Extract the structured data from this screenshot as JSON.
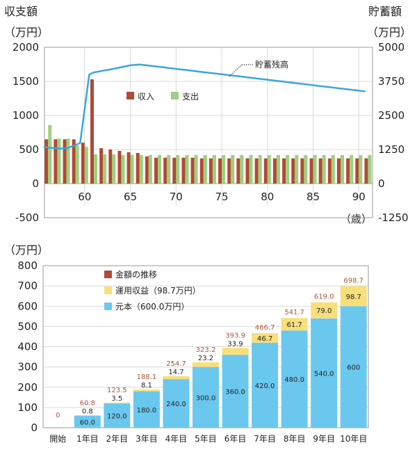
{
  "colors": {
    "income": "#b04a35",
    "expense": "#9fd07f",
    "savings_line": "#3aa6dc",
    "principal": "#6ac8ef",
    "return": "#f8df7a",
    "total_label": "#b0553a",
    "grid": "#d9d9d9"
  },
  "chart_data": [
    {
      "type": "bar",
      "left_axis_title": "収支額",
      "left_axis_unit": "（万円）",
      "right_axis_title": "貯蓄額",
      "right_axis_unit": "（万円）",
      "xlabel": "（歳）",
      "ylim_left": [
        -500,
        2000
      ],
      "yticks_left": [
        "2000",
        "1500",
        "1000",
        "500",
        "0",
        "-500"
      ],
      "ylim_right": [
        -1250,
        5000
      ],
      "yticks_right": [
        "5000",
        "3750",
        "2500",
        "1250",
        "0",
        "-1250"
      ],
      "xticks": [
        "60",
        "65",
        "70",
        "75",
        "80",
        "85",
        "90"
      ],
      "grid": true,
      "legend_position": "middle-left",
      "ages": [
        56,
        57,
        58,
        59,
        60,
        61,
        62,
        63,
        64,
        65,
        66,
        67,
        68,
        69,
        70,
        71,
        72,
        73,
        74,
        75,
        76,
        77,
        78,
        79,
        80,
        81,
        82,
        83,
        84,
        85,
        86,
        87,
        88,
        89,
        90,
        91
      ],
      "series": [
        {
          "name": "収入",
          "values": [
            650,
            650,
            650,
            650,
            600,
            1530,
            520,
            500,
            480,
            460,
            450,
            400,
            380,
            380,
            380,
            380,
            380,
            370,
            370,
            370,
            370,
            370,
            370,
            370,
            370,
            370,
            370,
            370,
            370,
            370,
            370,
            370,
            370,
            370,
            370,
            370
          ]
        },
        {
          "name": "支出",
          "values": [
            860,
            660,
            660,
            560,
            540,
            430,
            430,
            430,
            420,
            420,
            420,
            420,
            420,
            420,
            420,
            420,
            420,
            420,
            420,
            420,
            420,
            420,
            420,
            420,
            420,
            420,
            420,
            420,
            420,
            420,
            420,
            420,
            420,
            420,
            420,
            420
          ]
        }
      ],
      "savings_series": {
        "name": "貯蓄残高",
        "x": [
          55.5,
          56,
          57,
          58,
          58.8,
          59.5,
          60.5,
          61,
          62,
          63,
          64,
          65,
          66,
          67,
          68,
          69,
          70,
          71,
          72,
          73,
          74,
          75,
          76,
          77,
          78,
          79,
          80,
          81,
          82,
          83,
          84,
          85,
          86,
          87,
          88,
          89,
          90,
          90.7
        ],
        "y": [
          1350,
          1320,
          1290,
          1290,
          1390,
          1490,
          4000,
          4080,
          4140,
          4200,
          4270,
          4340,
          4370,
          4330,
          4290,
          4250,
          4210,
          4170,
          4130,
          4090,
          4050,
          4010,
          3970,
          3930,
          3890,
          3850,
          3810,
          3770,
          3730,
          3690,
          3650,
          3610,
          3570,
          3530,
          3490,
          3450,
          3410,
          3380
        ]
      }
    },
    {
      "type": "bar",
      "yaxis_unit": "（万円）",
      "ylim": [
        0,
        800
      ],
      "yticks": [
        "800",
        "700",
        "600",
        "500",
        "400",
        "300",
        "200",
        "100",
        "0"
      ],
      "categories": [
        "開始",
        "1年目",
        "2年目",
        "3年目",
        "4年目",
        "5年目",
        "6年目",
        "7年目",
        "8年目",
        "9年目",
        "10年目"
      ],
      "grid": true,
      "legend_position": "top-left",
      "series": [
        {
          "name": "元本（600.0万円）",
          "values": [
            0,
            60,
            120,
            180,
            240,
            300,
            360,
            420,
            480,
            540,
            600
          ],
          "labels": [
            "",
            "60.0",
            "120.0",
            "180.0",
            "240.0",
            "300.0",
            "360.0",
            "420.0",
            "480.0",
            "540.0",
            "600"
          ]
        },
        {
          "name": "運用収益（98.7万円）",
          "values": [
            0,
            0.8,
            3.5,
            8.1,
            14.7,
            23.2,
            33.9,
            46.7,
            61.7,
            79.0,
            98.7
          ],
          "labels": [
            "",
            "0.8",
            "3.5",
            "8.1",
            "14.7",
            "23.2",
            "33.9",
            "46.7",
            "61.7",
            "79.0",
            "98.7"
          ]
        }
      ],
      "totals_series_name": "金額の推移",
      "totals": [
        0,
        60.8,
        123.5,
        188.1,
        254.7,
        323.2,
        393.9,
        466.7,
        541.7,
        619.0,
        698.7
      ],
      "total_labels": [
        "0",
        "60.8",
        "123.5",
        "188.1",
        "254.7",
        "323.2",
        "393.9",
        "466.7",
        "541.7",
        "619.0",
        "698.7"
      ]
    }
  ]
}
